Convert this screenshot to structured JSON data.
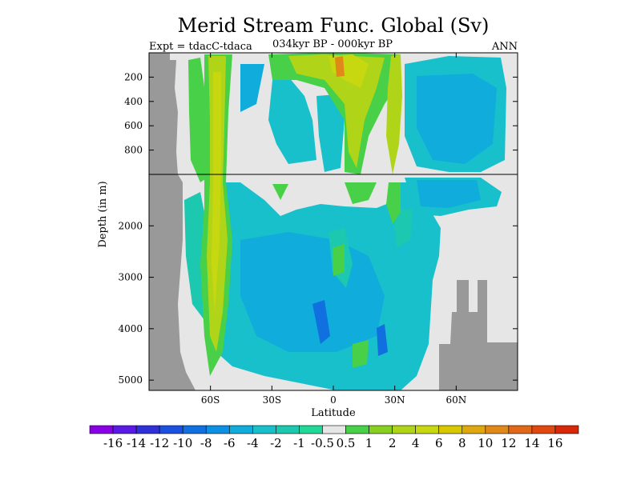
{
  "chart_data": {
    "type": "heatmap",
    "title": "Merid Stream Func. Global (Sv)",
    "subtitle_left": "Expt = tdacC-tdaca",
    "subtitle_center": "034kyr BP - 000kyr BP",
    "subtitle_right": "ANN",
    "xlabel": "Latitude",
    "ylabel": "Depth (in m)",
    "xlim": [
      -90,
      90
    ],
    "x_ticks": [
      {
        "value": -60,
        "label": "60S"
      },
      {
        "value": -30,
        "label": "30S"
      },
      {
        "value": 0,
        "label": "0"
      },
      {
        "value": 30,
        "label": "30N"
      },
      {
        "value": 60,
        "label": "60N"
      }
    ],
    "y_ticks_upper": [
      200,
      400,
      600,
      800
    ],
    "y_ticks_lower": [
      2000,
      3000,
      4000,
      5000
    ],
    "y_scale_note": "upper panel 0-1000 m linear, lower panel 1000-5200 m linear",
    "colorbar": {
      "labels": [
        "-16",
        "-14",
        "-12",
        "-10",
        "-8",
        "-6",
        "-4",
        "-2",
        "-1",
        "-0.5",
        "0.5",
        "1",
        "2",
        "4",
        "6",
        "8",
        "10",
        "12",
        "14",
        "16"
      ],
      "colors": [
        "#8a00e6",
        "#5a1ae6",
        "#3030d8",
        "#1c50de",
        "#1070e0",
        "#0c90e4",
        "#10acdc",
        "#18c0cc",
        "#1cc8b0",
        "#20d898",
        "#e6e6e6",
        "#48d048",
        "#88d020",
        "#b0d418",
        "#c8d810",
        "#d8c800",
        "#e0a810",
        "#e08818",
        "#e06818",
        "#e04810",
        "#d82808"
      ]
    },
    "colors": {
      "land": "#999999",
      "neutral": "#e6e6e6",
      "light_blue": "#18c0cc",
      "cyan": "#10acdc",
      "teal": "#1cc8b0",
      "green": "#48d048",
      "yellow_green": "#b0d418",
      "olive": "#c8d810",
      "orange": "#e08818"
    }
  }
}
